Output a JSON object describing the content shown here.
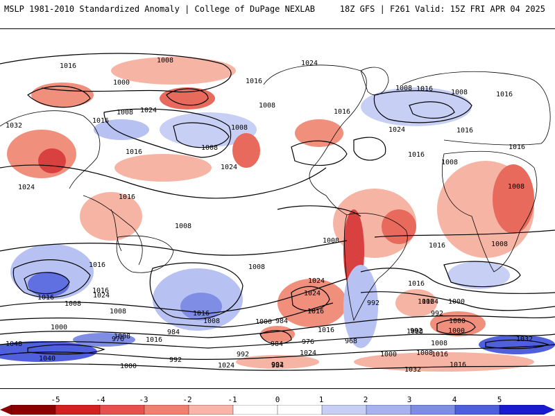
{
  "header": {
    "left_title": "MSLP 1981-2010 Standardized Anomaly | College of DuPage NEXLAB",
    "right_title": "18Z GFS | F261 Valid: 15Z FRI APR 04 2025"
  },
  "contour_labels": [
    "1016",
    "1008",
    "1000",
    "1008",
    "1024",
    "1016",
    "1016",
    "1024",
    "1008",
    "1016",
    "1008",
    "1024",
    "1016",
    "1008",
    "1008",
    "1016",
    "1032",
    "1016",
    "1008",
    "1024",
    "1016",
    "1016",
    "1008",
    "1016",
    "1024",
    "1016",
    "1008",
    "1008",
    "1008",
    "1008",
    "1016",
    "1008",
    "1016",
    "1016",
    "1016",
    "1008",
    "1024",
    "1024",
    "1016",
    "1008",
    "1016",
    "1000",
    "992",
    "1024",
    "1024",
    "1008",
    "1000",
    "984",
    "1016",
    "1008",
    "992",
    "1000",
    "1000",
    "992",
    "1000",
    "976",
    "984",
    "968",
    "976",
    "984",
    "1032",
    "1008",
    "1016",
    "992",
    "984",
    "1024",
    "1032",
    "1016",
    "1048",
    "1040",
    "1000",
    "992",
    "1024",
    "992",
    "1000",
    "1008",
    "1016",
    "1008",
    "1016",
    "1016"
  ],
  "colorbar": {
    "ticks": [
      "-5",
      "-4",
      "-3",
      "-2",
      "-1",
      "0",
      "1",
      "2",
      "3",
      "4",
      "5"
    ],
    "colors": {
      "neg5": "#8b0000",
      "neg4": "#d42020",
      "neg3": "#e85050",
      "neg2": "#f08070",
      "neg1": "#f8b4a8",
      "zero": "#ffffff",
      "pos1": "#c8cff5",
      "pos2": "#a8b2ee",
      "pos3": "#7f8de5",
      "pos4": "#4f5fdc",
      "pos5": "#1a1ad0"
    }
  },
  "map_colors": {
    "anomaly_neg": "#f2a08c",
    "anomaly_neg_strong": "#e0504a",
    "anomaly_pos": "#b8c2f2",
    "anomaly_pos_strong": "#5060dc",
    "contour": "#000000",
    "coast": "#000000"
  }
}
